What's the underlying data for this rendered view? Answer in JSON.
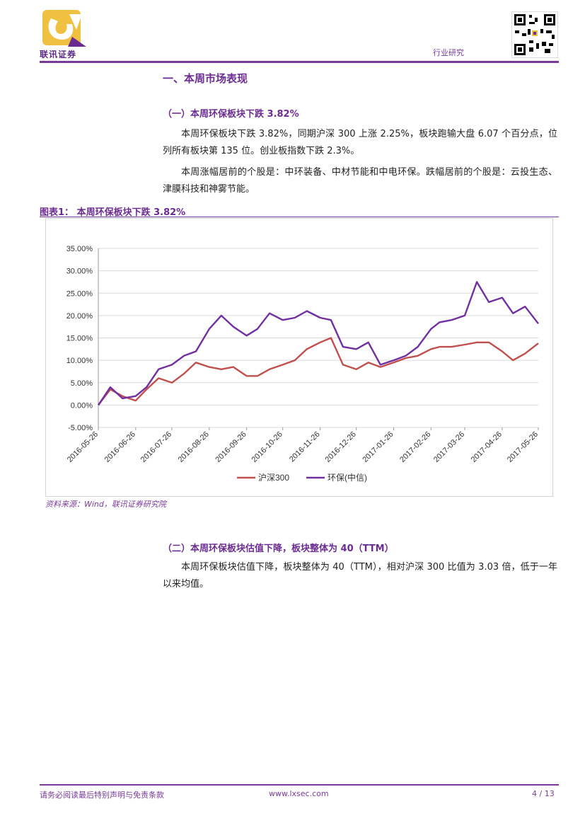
{
  "header": {
    "company": "联讯证券",
    "section": "行业研究"
  },
  "content": {
    "heading1": "一、本周市场表现",
    "sub1": "（一）本周环保板块下跌 3.82%",
    "para1": "本周环保板块下跌 3.82%，同期沪深 300 上涨 2.25%，板块跑输大盘 6.07 个百分点，位列所有板块第 135 位。创业板指数下跌 2.3%。",
    "para2": "本周涨幅居前的个股是：中环装备、中材节能和中电环保。跌幅居前的个股是：云投生态、津膜科技和神雾节能。",
    "figure_label": "图表1：  本周环保板块下跌 3.82%",
    "source": "资料来源：Wind，联讯证券研究院",
    "sub2": "（二）本周环保板块估值下降，板块整体为 40（TTM）",
    "para3": "本周环保板块估值下降，板块整体为 40（TTM），相对沪深 300 比值为 3.03 倍，低于一年以来均值。"
  },
  "footer": {
    "disclaimer": "请务必阅读最后特别声明与免责条款",
    "website": "www.lxsec.com",
    "page": "4 / 13"
  },
  "chart_data": {
    "type": "line",
    "title": "",
    "xlabel": "",
    "ylabel": "",
    "ylim": [
      -0.05,
      0.35
    ],
    "yticks": [
      -0.05,
      0,
      0.05,
      0.1,
      0.15,
      0.2,
      0.25,
      0.3,
      0.35
    ],
    "ytick_labels": [
      "-5.00%",
      "0.00%",
      "5.00%",
      "10.00%",
      "15.00%",
      "20.00%",
      "25.00%",
      "30.00%",
      "35.00%"
    ],
    "x_ticks": [
      "2016-05-26",
      "2016-06-26",
      "2016-07-26",
      "2016-08-26",
      "2016-09-26",
      "2016-10-26",
      "2016-11-26",
      "2016-12-26",
      "2017-01-26",
      "2017-02-26",
      "2017-03-26",
      "2017-04-26",
      "2017-05-26"
    ],
    "grid": "horizontal",
    "legend": "bottom",
    "colors": {
      "hs300": "#c0504d",
      "env": "#7030a0"
    },
    "x": [
      "2016-05-26",
      "2016-06-05",
      "2016-06-15",
      "2016-06-26",
      "2016-07-05",
      "2016-07-15",
      "2016-07-26",
      "2016-08-05",
      "2016-08-15",
      "2016-08-26",
      "2016-09-05",
      "2016-09-15",
      "2016-09-26",
      "2016-10-05",
      "2016-10-15",
      "2016-10-26",
      "2016-11-05",
      "2016-11-15",
      "2016-11-26",
      "2016-12-05",
      "2016-12-15",
      "2016-12-26",
      "2017-01-05",
      "2017-01-15",
      "2017-01-26",
      "2017-02-05",
      "2017-02-15",
      "2017-02-26",
      "2017-03-05",
      "2017-03-15",
      "2017-03-26",
      "2017-04-05",
      "2017-04-15",
      "2017-04-26",
      "2017-05-05",
      "2017-05-15",
      "2017-05-26"
    ],
    "series": [
      {
        "name": "沪深300",
        "key": "hs300",
        "values": [
          0.0,
          0.035,
          0.02,
          0.01,
          0.035,
          0.06,
          0.05,
          0.07,
          0.095,
          0.085,
          0.08,
          0.085,
          0.065,
          0.065,
          0.08,
          0.09,
          0.1,
          0.125,
          0.14,
          0.15,
          0.09,
          0.08,
          0.095,
          0.085,
          0.095,
          0.105,
          0.11,
          0.125,
          0.13,
          0.13,
          0.135,
          0.14,
          0.14,
          0.12,
          0.1,
          0.115,
          0.138
        ]
      },
      {
        "name": "环保(中信)",
        "key": "env",
        "values": [
          0.0,
          0.04,
          0.015,
          0.02,
          0.04,
          0.08,
          0.09,
          0.11,
          0.12,
          0.17,
          0.2,
          0.175,
          0.155,
          0.17,
          0.205,
          0.19,
          0.195,
          0.21,
          0.195,
          0.19,
          0.13,
          0.125,
          0.14,
          0.09,
          0.1,
          0.11,
          0.13,
          0.17,
          0.185,
          0.19,
          0.2,
          0.275,
          0.23,
          0.24,
          0.205,
          0.22,
          0.182
        ]
      }
    ]
  }
}
